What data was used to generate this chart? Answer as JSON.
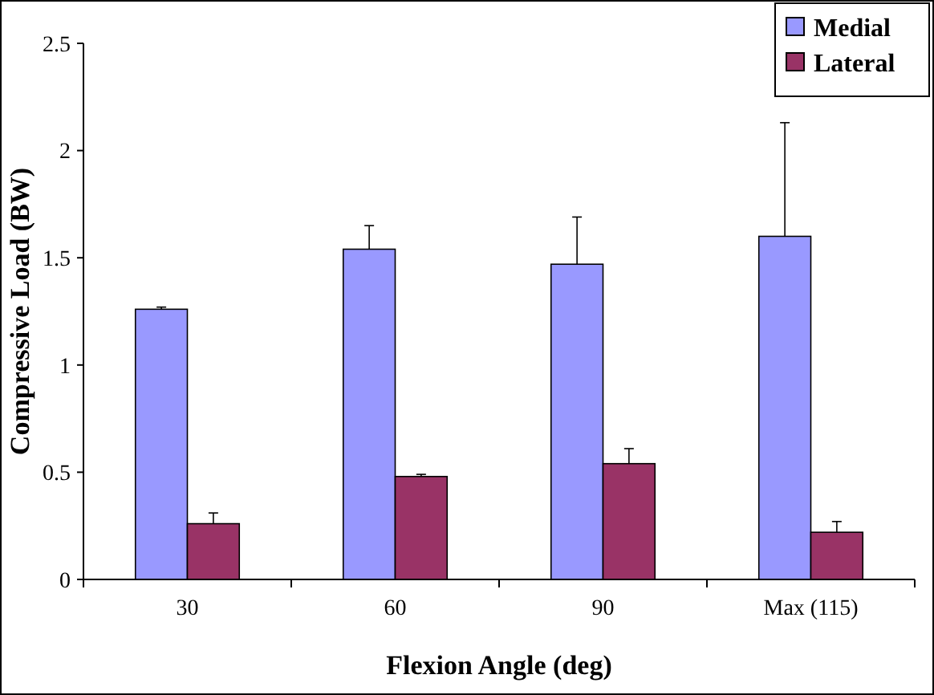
{
  "chart_data": {
    "type": "bar",
    "xlabel": "Flexion Angle (deg)",
    "ylabel": "Compressive Load (BW)",
    "categories": [
      "30",
      "60",
      "90",
      "Max (115)"
    ],
    "series": [
      {
        "name": "Medial",
        "color": "#9999ff",
        "values": [
          1.26,
          1.54,
          1.47,
          1.6
        ],
        "errors": [
          [
            1.26,
            1.27
          ],
          [
            1.54,
            1.65
          ],
          [
            1.47,
            1.69
          ],
          [
            1.6,
            2.13
          ]
        ]
      },
      {
        "name": "Lateral",
        "color": "#993366",
        "values": [
          0.26,
          0.48,
          0.54,
          0.22
        ],
        "errors": [
          [
            0.26,
            0.31
          ],
          [
            0.48,
            0.49
          ],
          [
            0.54,
            0.61
          ],
          [
            0.22,
            0.27
          ]
        ]
      }
    ],
    "ylim": [
      0,
      2.5
    ],
    "yticks": [
      0,
      {
        "value": 0.5,
        "label": "0.5"
      },
      1,
      {
        "value": 1.5,
        "label": "1.5"
      },
      2,
      {
        "value": 2.5,
        "label": "2.5"
      }
    ],
    "grid": false,
    "legend": "top right"
  }
}
